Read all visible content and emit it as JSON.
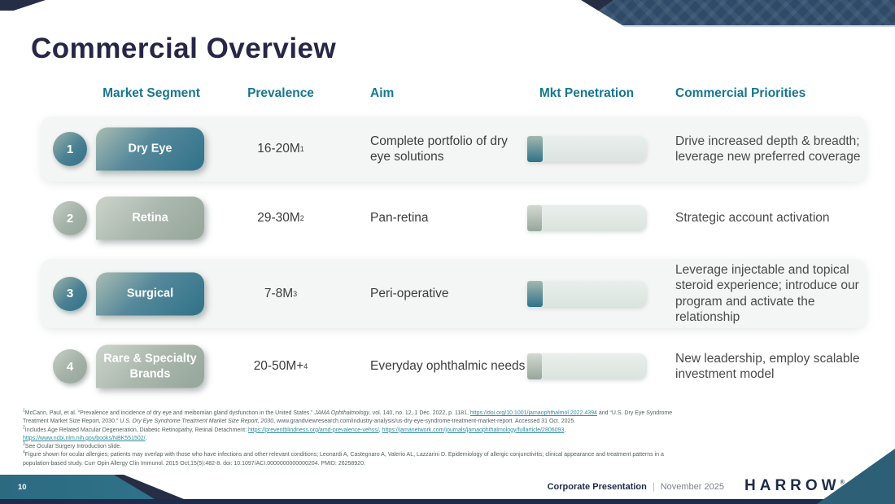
{
  "slide": {
    "title": "Commercial Overview",
    "page_number": "10",
    "footer": {
      "doc_title": "Corporate Presentation",
      "separator": "|",
      "date": "November 2025",
      "logo": "HARROW",
      "logo_reg": "®"
    }
  },
  "colors": {
    "accent_teal": "#177690",
    "navy": "#1e2b4a",
    "title_navy": "#282647",
    "teal_gradient": [
      "#a9bdb3",
      "#2f7289"
    ],
    "sage_gradient": [
      "#ccd4cb",
      "#96a59b"
    ],
    "row_background": "#f4f6f5",
    "link_teal": "#2e8aa0",
    "banner_navy": "#2e4a68",
    "corner_teal": "#2d6076"
  },
  "table": {
    "headers": [
      "Market Segment",
      "Prevalence",
      "Aim",
      "Mkt Penetration",
      "Commercial Priorities"
    ],
    "rows": [
      {
        "number": "1",
        "segment": "Dry Eye",
        "theme": "teal",
        "prevalence": "16-20M",
        "prevalence_sup": "1",
        "aim": "Complete portfolio of dry eye solutions",
        "penetration_pct": 13,
        "priorities": "Drive increased depth & breadth; leverage new preferred coverage"
      },
      {
        "number": "2",
        "segment": "Retina",
        "theme": "sage",
        "prevalence": "29-30M",
        "prevalence_sup": "2",
        "aim": "Pan-retina",
        "penetration_pct": 12,
        "priorities": "Strategic account activation"
      },
      {
        "number": "3",
        "segment": "Surgical",
        "theme": "teal",
        "prevalence": "7-8M",
        "prevalence_sup": "3",
        "aim": "Peri-operative",
        "penetration_pct": 13,
        "priorities": "Leverage injectable and topical steroid experience; introduce our program and activate the relationship"
      },
      {
        "number": "4",
        "segment": "Rare & Specialty Brands",
        "theme": "sage",
        "prevalence": "20-50M+",
        "prevalence_sup": "4",
        "aim": "Everyday ophthalmic needs",
        "penetration_pct": 12,
        "priorities": "New leadership, employ scalable investment model"
      }
    ]
  },
  "footnotes": {
    "lines": [
      [
        {
          "t": "1",
          "sup": true
        },
        {
          "t": "McCann, Paul, et al. “Prevalence and incidence of dry eye and meibomian gland dysfunction in the United States.” "
        },
        {
          "t": "JAMA Ophthalmology",
          "i": true
        },
        {
          "t": ", vol. 140, no. 12, 1 Dec. 2022, p. 1181, "
        },
        {
          "t": "https://doi.org/10.1001/jamaophthalmol.2022.4394",
          "link": true
        },
        {
          "t": " and “U.S. Dry Eye Syndrome"
        }
      ],
      [
        {
          "t": "Treatment Market Size Report, 2030.” "
        },
        {
          "t": "U.S. Dry Eye Syndrome Treatment Market Size Report, 2030",
          "i": true
        },
        {
          "t": ", www.grandviewresearch.com/industry-analysis/us-dry-eye-syndrome-treatment-market-report. Accessed 31 Oct. 2025."
        }
      ],
      [
        {
          "t": "2",
          "sup": true
        },
        {
          "t": "Includes Age Related Macular Degeneration, Diabetic Retinopathy, Retinal Detachment: "
        },
        {
          "t": "https://preventblindness.org/amd-prevalence-vehss/",
          "link": true
        },
        {
          "t": ", "
        },
        {
          "t": "https://jamanetwork.com/journals/jamaophthalmology/fullarticle/2806093",
          "link": true
        },
        {
          "t": ","
        }
      ],
      [
        {
          "t": "https://www.ncbi.nlm.nih.gov/books/NBK551502/",
          "link": true
        },
        {
          "t": "."
        }
      ],
      [
        {
          "t": "3",
          "sup": true
        },
        {
          "t": "See Ocular Surgery Introduction slide."
        }
      ],
      [
        {
          "t": "4",
          "sup": true
        },
        {
          "t": "Figure shown for ocular allergies; patients may overlap with those who have infections and other relevant conditions; Leonardi A, Castegnaro A, Valerio AL, Lazzarini D. Epidemiology of allergic conjunctivitis; clinical appearance and treatment patterns in a"
        }
      ],
      [
        {
          "t": "population-based study. Curr Opin Allergy Clin Immunol. 2015 Oct;15(5):482-8. doi: 10.1097/ACI.0000000000000204. PMID: 26258920."
        }
      ]
    ]
  }
}
